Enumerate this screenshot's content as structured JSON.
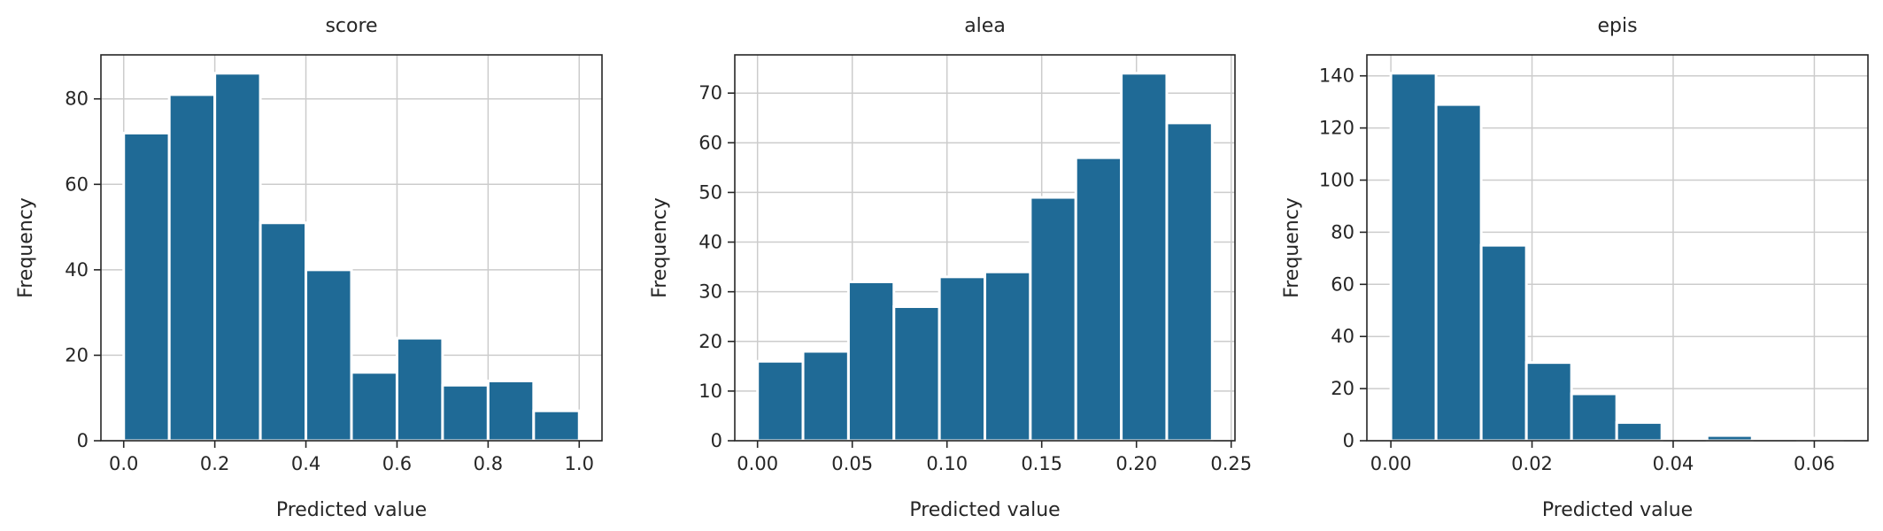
{
  "chart_data": [
    {
      "type": "bar",
      "title": "score",
      "xlabel": "Predicted value",
      "ylabel": "Frequency",
      "xlim": [
        -0.05,
        1.05
      ],
      "ylim": [
        0,
        90.3
      ],
      "xticks": [
        0.0,
        0.2,
        0.4,
        0.6,
        0.8,
        1.0
      ],
      "xtick_labels": [
        "0.0",
        "0.2",
        "0.4",
        "0.6",
        "0.8",
        "1.0"
      ],
      "yticks": [
        0,
        20,
        40,
        60,
        80
      ],
      "ytick_labels": [
        "0",
        "20",
        "40",
        "60",
        "80"
      ],
      "grid": true,
      "color": "#1f6a96",
      "bin_edges": [
        0.0,
        0.1,
        0.2,
        0.3,
        0.4,
        0.5,
        0.6,
        0.7,
        0.8,
        0.9,
        1.0
      ],
      "values": [
        72,
        81,
        86,
        51,
        40,
        16,
        24,
        13,
        14,
        7
      ]
    },
    {
      "type": "bar",
      "title": "alea",
      "xlabel": "Predicted value",
      "ylabel": "Frequency",
      "xlim": [
        -0.012,
        0.252
      ],
      "ylim": [
        0,
        77.7
      ],
      "xticks": [
        0.0,
        0.05,
        0.1,
        0.15,
        0.2,
        0.25
      ],
      "xtick_labels": [
        "0.00",
        "0.05",
        "0.10",
        "0.15",
        "0.20",
        "0.25"
      ],
      "yticks": [
        0,
        10,
        20,
        30,
        40,
        50,
        60,
        70
      ],
      "ytick_labels": [
        "0",
        "10",
        "20",
        "30",
        "40",
        "50",
        "60",
        "70"
      ],
      "grid": true,
      "color": "#1f6a96",
      "bin_edges": [
        0.0,
        0.024,
        0.048,
        0.072,
        0.096,
        0.12,
        0.144,
        0.168,
        0.192,
        0.216,
        0.24
      ],
      "values": [
        16,
        18,
        32,
        27,
        33,
        34,
        49,
        57,
        74,
        64
      ]
    },
    {
      "type": "bar",
      "title": "epis",
      "xlabel": "Predicted value",
      "ylabel": "Frequency",
      "xlim": [
        -0.0034,
        0.0676
      ],
      "ylim": [
        0,
        148.05
      ],
      "xticks": [
        0.0,
        0.02,
        0.04,
        0.06
      ],
      "xtick_labels": [
        "0.00",
        "0.02",
        "0.04",
        "0.06"
      ],
      "yticks": [
        0,
        20,
        40,
        60,
        80,
        100,
        120,
        140
      ],
      "ytick_labels": [
        "0",
        "20",
        "40",
        "60",
        "80",
        "100",
        "120",
        "140"
      ],
      "grid": true,
      "color": "#1f6a96",
      "bin_edges": [
        0.0,
        0.0064,
        0.0128,
        0.0192,
        0.0256,
        0.032,
        0.0384,
        0.0448,
        0.0512,
        0.0576,
        0.064
      ],
      "values": [
        141,
        129,
        75,
        30,
        18,
        7,
        0,
        2,
        0,
        1
      ]
    }
  ]
}
